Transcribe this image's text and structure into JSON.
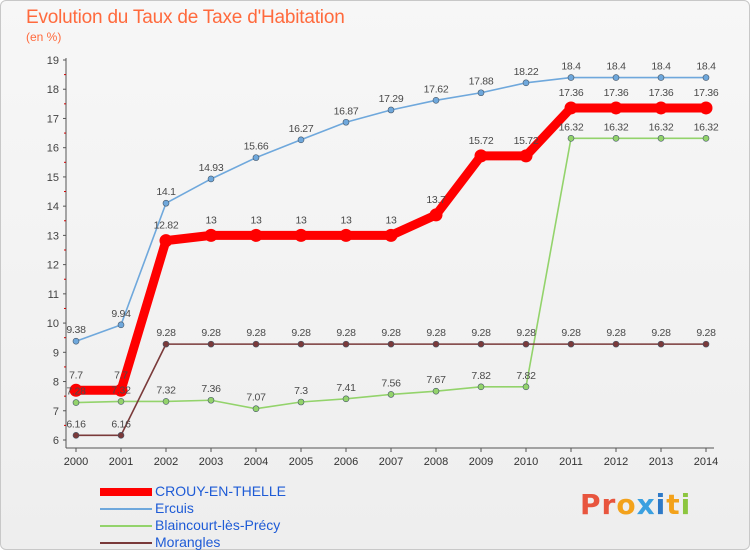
{
  "title": "Evolution du Taux de Taxe d'Habitation",
  "subtitle": "(en %)",
  "logo_text": "Proxiti",
  "chart_data": {
    "type": "line",
    "x": [
      "2000",
      "2001",
      "2002",
      "2003",
      "2004",
      "2005",
      "2006",
      "2007",
      "2008",
      "2009",
      "2010",
      "2011",
      "2012",
      "2013",
      "2014"
    ],
    "ylim": [
      6,
      19
    ],
    "yticks": [
      "6",
      "7",
      "8",
      "9",
      "10",
      "11",
      "12",
      "13",
      "14",
      "15",
      "16",
      "17",
      "18",
      "19"
    ],
    "grid": false,
    "legend_position": "bottom-left",
    "series": [
      {
        "name": "CROUY-EN-THELLE",
        "color": "#ff0000",
        "values": [
          7.7,
          7.7,
          12.82,
          13,
          13,
          13,
          13,
          13,
          13.7,
          15.72,
          15.72,
          17.36,
          17.36,
          17.36,
          17.36
        ],
        "labels": [
          "7.7",
          "7.7",
          "12.82",
          "13",
          "13",
          "13",
          "13",
          "13",
          "13.7",
          "15.72",
          "15.72",
          "17.36",
          "17.36",
          "17.36",
          "17.36"
        ]
      },
      {
        "name": "Ercuis",
        "color": "#6fa8dc",
        "values": [
          9.38,
          9.94,
          14.1,
          14.93,
          15.66,
          16.27,
          16.87,
          17.29,
          17.62,
          17.88,
          18.22,
          18.4,
          18.4,
          18.4,
          18.4
        ],
        "labels": [
          "9.38",
          "9.94",
          "14.1",
          "14.93",
          "15.66",
          "16.27",
          "16.87",
          "17.29",
          "17.62",
          "17.88",
          "18.22",
          "18.4",
          "18.4",
          "18.4",
          "18.4"
        ]
      },
      {
        "name": "Blaincourt-lès-Précy",
        "color": "#93d36b",
        "values": [
          7.28,
          7.32,
          7.32,
          7.36,
          7.07,
          7.3,
          7.41,
          7.56,
          7.67,
          7.82,
          7.82,
          16.32,
          16.32,
          16.32,
          16.32
        ],
        "labels": [
          "7.28",
          "7.32",
          "7.32",
          "7.36",
          "7.07",
          "7.3",
          "7.41",
          "7.56",
          "7.67",
          "7.82",
          "7.82",
          "16.32",
          "16.32",
          "16.32",
          "16.32"
        ]
      },
      {
        "name": "Morangles",
        "color": "#7a3a3a",
        "values": [
          6.16,
          6.16,
          9.28,
          9.28,
          9.28,
          9.28,
          9.28,
          9.28,
          9.28,
          9.28,
          9.28,
          9.28,
          9.28,
          9.28,
          9.28
        ],
        "labels": [
          "6.16",
          "6.16",
          "9.28",
          "9.28",
          "9.28",
          "9.28",
          "9.28",
          "9.28",
          "9.28",
          "9.28",
          "9.28",
          "9.28",
          "9.28",
          "9.28",
          "9.28"
        ]
      }
    ]
  }
}
